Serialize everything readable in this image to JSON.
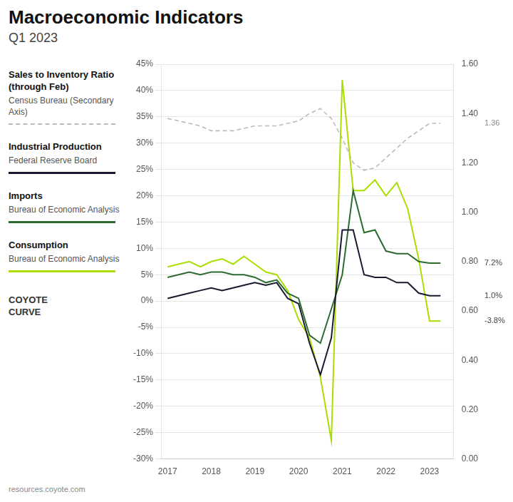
{
  "chart_data": {
    "type": "line",
    "title": "Macroeconomic Indicators",
    "subtitle": "Q1 2023",
    "watermark": "resources.coyote.com",
    "logo": [
      "COYOTE",
      "CURVE"
    ],
    "legend": "left",
    "grid": true,
    "x": [
      2017,
      2017.25,
      2017.5,
      2017.75,
      2018,
      2018.25,
      2018.5,
      2018.75,
      2019,
      2019.25,
      2019.5,
      2019.75,
      2020,
      2020.25,
      2020.5,
      2020.75,
      2021,
      2021.25,
      2021.5,
      2021.75,
      2022,
      2022.25,
      2022.5,
      2022.75,
      2023,
      2023.25
    ],
    "xlim": [
      2016.85,
      2023.55
    ],
    "xticks": [
      2017,
      2018,
      2019,
      2020,
      2021,
      2022,
      2023
    ],
    "ylim": [
      -30,
      45
    ],
    "yticks": [
      {
        "value": -30,
        "label": "-30%"
      },
      {
        "value": -25,
        "label": "-25%"
      },
      {
        "value": -20,
        "label": "-20%"
      },
      {
        "value": -15,
        "label": "-15%"
      },
      {
        "value": -10,
        "label": "-10%"
      },
      {
        "value": -5,
        "label": "-5%"
      },
      {
        "value": 0,
        "label": "0%"
      },
      {
        "value": 5,
        "label": "5%"
      },
      {
        "value": 10,
        "label": "10%"
      },
      {
        "value": 15,
        "label": "15%"
      },
      {
        "value": 20,
        "label": "20%"
      },
      {
        "value": 25,
        "label": "25%"
      },
      {
        "value": 30,
        "label": "30%"
      },
      {
        "value": 35,
        "label": "35%"
      },
      {
        "value": 40,
        "label": "40%"
      },
      {
        "value": 45,
        "label": "45%"
      }
    ],
    "y2lim": [
      0.0,
      1.6
    ],
    "y2ticks": [
      {
        "value": 0.0,
        "label": "0.00"
      },
      {
        "value": 0.2,
        "label": "0.20"
      },
      {
        "value": 0.4,
        "label": "0.40"
      },
      {
        "value": 0.6,
        "label": "0.60"
      },
      {
        "value": 0.8,
        "label": "0.80"
      },
      {
        "value": 1.0,
        "label": "1.00"
      },
      {
        "value": 1.2,
        "label": "1.20"
      },
      {
        "value": 1.4,
        "label": "1.40"
      },
      {
        "value": 1.6,
        "label": "1.60"
      }
    ],
    "series": [
      {
        "name": "Sales to Inventory Ratio (through Feb)",
        "source": "Census Bureau (Secondary Axis)",
        "color": "#bbbbbb",
        "line_style": "dashed",
        "axis": "y2",
        "end_label": "1.36",
        "values": [
          1.38,
          1.37,
          1.36,
          1.35,
          1.33,
          1.33,
          1.33,
          1.34,
          1.35,
          1.35,
          1.35,
          1.36,
          1.37,
          1.4,
          1.42,
          1.38,
          1.3,
          1.2,
          1.17,
          1.18,
          1.22,
          1.26,
          1.3,
          1.33,
          1.36,
          1.36
        ]
      },
      {
        "name": "Industrial Production",
        "source": "Federal Reserve Board",
        "color": "#1a1a2e",
        "line_style": "solid",
        "end_label": "1.0%",
        "values": [
          0.5,
          1.0,
          1.5,
          2.0,
          2.5,
          2.0,
          2.5,
          3.0,
          3.5,
          3.0,
          3.5,
          0.5,
          -0.5,
          -8.0,
          -14.0,
          -7.0,
          13.5,
          13.5,
          5.0,
          4.5,
          4.5,
          3.5,
          3.5,
          1.5,
          1.0,
          1.0
        ]
      },
      {
        "name": "Imports",
        "source": "Bureau of Economic Analysis",
        "color": "#2d6a2d",
        "line_style": "solid",
        "end_label": "7.2%",
        "values": [
          4.5,
          5.0,
          5.5,
          5.0,
          5.5,
          5.5,
          5.0,
          5.0,
          4.5,
          3.5,
          4.0,
          1.5,
          0.5,
          -6.5,
          -8.0,
          -1.5,
          5.0,
          21.0,
          13.0,
          13.5,
          9.5,
          9.0,
          9.0,
          7.5,
          7.2,
          7.2
        ]
      },
      {
        "name": "Consumption",
        "source": "Bureau of Economic Analysis",
        "color": "#aadd00",
        "line_style": "solid",
        "end_label": "-3.8%",
        "values": [
          6.5,
          7.0,
          7.5,
          6.5,
          7.5,
          8.0,
          7.0,
          8.5,
          7.0,
          5.5,
          5.0,
          2.0,
          -3.5,
          -7.0,
          -14.5,
          -26.5,
          42.0,
          21.0,
          21.0,
          23.0,
          20.0,
          22.5,
          17.5,
          8.0,
          -3.8,
          -3.8
        ]
      }
    ]
  }
}
